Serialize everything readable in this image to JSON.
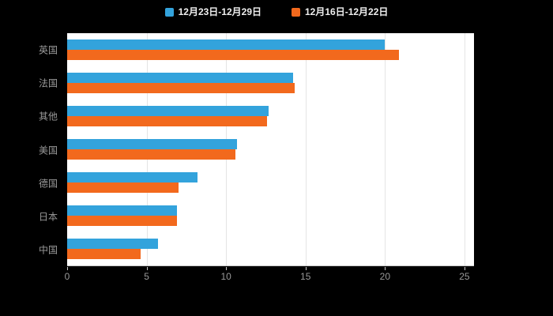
{
  "chart_data": {
    "type": "bar",
    "orientation": "horizontal",
    "title": "",
    "xlabel": "",
    "ylabel": "",
    "categories": [
      "英国",
      "法国",
      "其他",
      "美国",
      "德国",
      "日本",
      "中国"
    ],
    "series": [
      {
        "name": "12月23日-12月29日",
        "color": "#33A3DC",
        "values": [
          20.0,
          14.2,
          12.7,
          10.7,
          8.2,
          6.9,
          5.7
        ]
      },
      {
        "name": "12月16日-12月22日",
        "color": "#F2691D",
        "values": [
          20.9,
          14.3,
          12.6,
          10.6,
          7.0,
          6.9,
          4.6
        ]
      }
    ],
    "xlim": [
      0,
      25.6
    ],
    "xticks": [
      0,
      5,
      10,
      15,
      20,
      25
    ],
    "grid": true,
    "legend_position": "top",
    "plot_background": "#ffffff",
    "page_background": "#000000"
  }
}
